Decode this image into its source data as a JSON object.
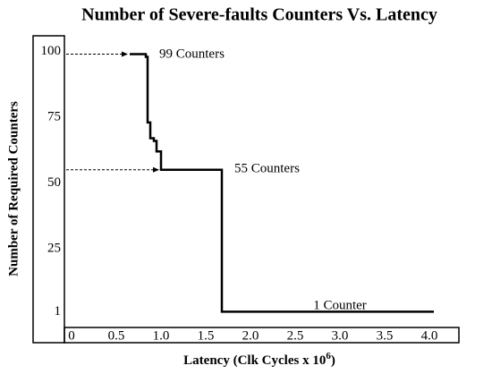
{
  "chart_data": {
    "type": "line",
    "title": "Number of Severe-faults Counters Vs. Latency",
    "ylabel": "Number of Required Counters",
    "xlabel": {
      "text": "Latency (Clk Cycles x 10",
      "superscript": "6",
      "suffix": ")"
    },
    "x": [
      0.65,
      0.83,
      0.83,
      0.85,
      0.85,
      0.88,
      0.88,
      0.92,
      0.92,
      0.95,
      0.95,
      1.0,
      1.0,
      1.68,
      1.68,
      4.05
    ],
    "values": [
      99,
      99,
      98,
      98,
      73,
      73,
      67,
      67,
      66,
      66,
      62,
      62,
      55,
      55,
      1,
      1
    ],
    "color": "#000000",
    "xlim": [
      -0.08,
      4.33
    ],
    "ylim": [
      -5,
      106
    ],
    "xticks": [
      0,
      0.5,
      {
        "value": 1,
        "label": "1.0"
      },
      1.5,
      {
        "value": 2,
        "label": "2.0"
      },
      2.5,
      {
        "value": 3,
        "label": "3.0"
      },
      3.5,
      {
        "value": 4,
        "label": "4.0"
      }
    ],
    "yticks": [
      1,
      25,
      50,
      75,
      100
    ],
    "annotations": [
      "99 Counters",
      "55 Counters",
      "1 Counter"
    ]
  }
}
